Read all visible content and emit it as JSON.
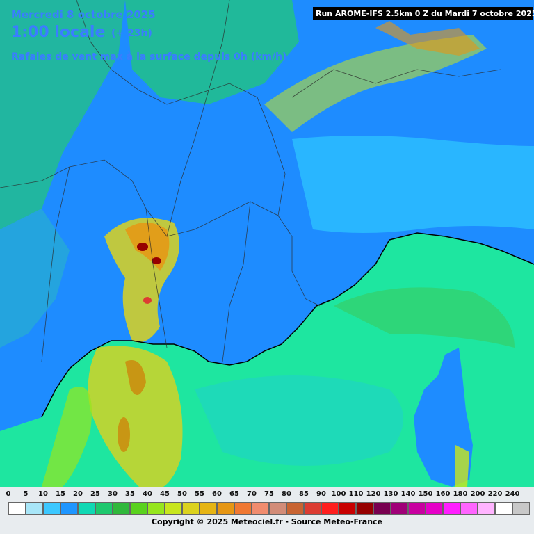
{
  "header": {
    "date": "Mercredi 8 octobre 2025",
    "time": "1:00 locale",
    "offset": "(+ 23h)",
    "description": "Rafales de vent max à la surface depuis 0h (km/h)",
    "run": "Run AROME-IFS 2.5km 0 Z du Mardi 7 octobre 2025"
  },
  "legend": {
    "ticks": [
      "0",
      "5",
      "10",
      "15",
      "20",
      "25",
      "30",
      "35",
      "40",
      "45",
      "50",
      "55",
      "60",
      "65",
      "70",
      "75",
      "80",
      "85",
      "90",
      "100",
      "110",
      "120",
      "130",
      "140",
      "150",
      "160",
      "180",
      "200",
      "220",
      "240"
    ],
    "colors": [
      "#ffffff",
      "#a8e6f8",
      "#3cc8ff",
      "#1e96ff",
      "#10d8b4",
      "#1ec86e",
      "#30b83c",
      "#5ad21e",
      "#96e61e",
      "#c8e61e",
      "#dcd21e",
      "#e6b414",
      "#e69614",
      "#f07832",
      "#f08c6e",
      "#d28c78",
      "#c86432",
      "#dc3c32",
      "#ff1e1e",
      "#c80000",
      "#960000",
      "#780050",
      "#a00078",
      "#c800a0",
      "#e600c8",
      "#ff1eff",
      "#ff64ff",
      "#ffb4ff",
      "#ffffff",
      "#c8c8c8"
    ],
    "copyright": "Copyright © 2025 Meteociel.fr - Source Meteo-France"
  },
  "map": {
    "land_color": "#1e8cff",
    "sea_color": "#1ee6a0",
    "alps_color": "#2ec8ff",
    "gust_zone_color": "#d2e61e"
  }
}
